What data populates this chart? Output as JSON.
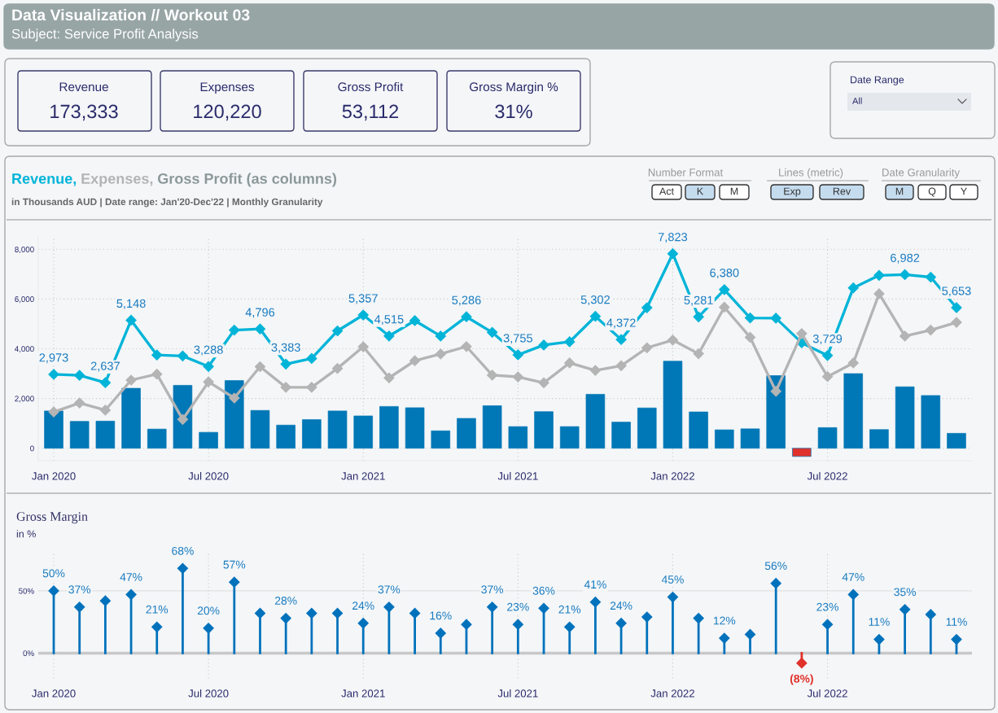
{
  "chart_data": [
    {
      "type": "other",
      "title": "Data Visualization // Workout 03",
      "subtitle": "Subject: Service Profit Analysis",
      "annotations": [
        "Revenue",
        "173,333",
        "Expenses",
        "120,220",
        "Gross Profit",
        "53,112",
        "Gross Margin %",
        "31%",
        "Date Range",
        "All",
        "Number Format",
        "Act",
        "K",
        "M",
        "Lines (metric)",
        "Exp",
        "Rev",
        "Date Granularity",
        "M",
        "Q",
        "Y"
      ]
    },
    {
      "type": "bar",
      "title": "Gross Profit (as columns)",
      "subtitle": "in Thousands AUD | Date range: Jan'20-Dec'22 | Monthly Granularity",
      "categories": [
        "Jan 2020",
        null,
        null,
        null,
        null,
        null,
        "Jul 2020",
        null,
        null,
        null,
        null,
        null,
        "Jan 2021",
        null,
        null,
        null,
        null,
        null,
        "Jul 2021",
        null,
        null,
        null,
        null,
        null,
        "Jan 2022",
        null,
        null,
        null,
        null,
        null,
        "Jul 2022",
        null,
        null,
        null,
        null,
        null
      ],
      "ylim": [
        -500,
        8500
      ],
      "yticks": [
        {
          "value": 0,
          "label": "0"
        },
        {
          "value": 2000,
          "label": "2,000"
        },
        {
          "value": 4000,
          "label": "4,000"
        },
        {
          "value": 6000,
          "label": "6,000"
        },
        {
          "value": 8000,
          "label": "8,000"
        }
      ],
      "grid": true,
      "legend": "top left",
      "series": [
        {
          "type": "bar",
          "color": "#0077b6",
          "values": [
            1500,
            1080,
            1090,
            2410,
            770,
            2530,
            640,
            2720,
            1520,
            930,
            1150,
            1500,
            1300,
            1680,
            1630,
            700,
            1200,
            1710,
            870,
            1470,
            870,
            2170,
            1050,
            1620,
            3500,
            1460,
            740,
            780,
            2920,
            -330,
            830,
            3000,
            750,
            2470,
            2120,
            600
          ],
          "colors": [
            "#0077b6",
            "#0077b6",
            "#0077b6",
            "#0077b6",
            "#0077b6",
            "#0077b6",
            "#0077b6",
            "#0077b6",
            "#0077b6",
            "#0077b6",
            "#0077b6",
            "#0077b6",
            "#0077b6",
            "#0077b6",
            "#0077b6",
            "#0077b6",
            "#0077b6",
            "#0077b6",
            "#0077b6",
            "#0077b6",
            "#0077b6",
            "#0077b6",
            "#0077b6",
            "#0077b6",
            "#0077b6",
            "#0077b6",
            "#0077b6",
            "#0077b6",
            "#0077b6",
            "#e0312b",
            "#0077b6",
            "#0077b6",
            "#0077b6",
            "#0077b6",
            "#0077b6",
            "#0077b6"
          ]
        },
        {
          "type": "line",
          "name": "Revenue,",
          "color": "#00b4d8",
          "marker": "diamond",
          "values": [
            2973,
            2930,
            2637,
            5148,
            3750,
            3710,
            3288,
            4750,
            4796,
            3383,
            3610,
            4720,
            5357,
            4515,
            5130,
            4510,
            5286,
            4660,
            3755,
            4150,
            4280,
            5302,
            4372,
            5650,
            7823,
            5281,
            6380,
            5240,
            5230,
            4240,
            3729,
            6450,
            6950,
            6982,
            6880,
            5653
          ],
          "value_labels": [
            "2,973",
            null,
            "2,637",
            "5,148",
            null,
            null,
            "3,288",
            null,
            "4,796",
            "3,383",
            null,
            null,
            "5,357",
            "4,515",
            null,
            null,
            "5,286",
            null,
            "3,755",
            null,
            null,
            "5,302",
            "4,372",
            null,
            "7,823",
            "5,281",
            "6,380",
            null,
            null,
            null,
            "3,729",
            null,
            null,
            "6,982",
            null,
            "5,653"
          ]
        },
        {
          "type": "line",
          "name": "Expenses,",
          "color": "#b4b4b4",
          "marker": "diamond",
          "values": [
            1460,
            1820,
            1530,
            2740,
            2980,
            1160,
            2670,
            2020,
            3280,
            2450,
            2450,
            3210,
            4080,
            2830,
            3520,
            3790,
            4090,
            2940,
            2870,
            2630,
            3430,
            3130,
            3320,
            4040,
            4350,
            3800,
            5670,
            4460,
            2290,
            4610,
            2880,
            3430,
            6210,
            4510,
            4750,
            5060
          ]
        }
      ]
    },
    {
      "type": "lollipop",
      "title": "Gross Margin",
      "subtitle": "in %",
      "categories": [
        "Jan 2020",
        null,
        null,
        null,
        null,
        null,
        "Jul 2020",
        null,
        null,
        null,
        null,
        null,
        "Jan 2021",
        null,
        null,
        null,
        null,
        null,
        "Jul 2021",
        null,
        null,
        null,
        null,
        null,
        "Jan 2022",
        null,
        null,
        null,
        null,
        null,
        "Jul 2022",
        null,
        null,
        null,
        null,
        null
      ],
      "ylim": [
        -20,
        80
      ],
      "yticks": [
        {
          "value": 0,
          "label": "0%"
        },
        {
          "value": 50,
          "label": "50%"
        }
      ],
      "grid": "x",
      "marker": "diamond",
      "ref_lines": [
        {
          "axis": "y",
          "value": 50,
          "color": "#e2e2e2",
          "line_style": "solid"
        }
      ],
      "values": [
        50,
        37,
        42,
        47,
        21,
        68,
        20,
        57,
        32,
        28,
        32,
        32,
        24,
        37,
        32,
        16,
        23,
        37,
        23,
        36,
        21,
        41,
        24,
        29,
        45,
        28,
        12,
        15,
        56,
        -8,
        23,
        47,
        11,
        35,
        31,
        11
      ],
      "colors": [
        "#0072bc",
        "#0072bc",
        "#0072bc",
        "#0072bc",
        "#0072bc",
        "#0072bc",
        "#0072bc",
        "#0072bc",
        "#0072bc",
        "#0072bc",
        "#0072bc",
        "#0072bc",
        "#0072bc",
        "#0072bc",
        "#0072bc",
        "#0072bc",
        "#0072bc",
        "#0072bc",
        "#0072bc",
        "#0072bc",
        "#0072bc",
        "#0072bc",
        "#0072bc",
        "#0072bc",
        "#0072bc",
        "#0072bc",
        "#0072bc",
        "#0072bc",
        "#0072bc",
        "#e0312b",
        "#0072bc",
        "#0072bc",
        "#0072bc",
        "#0072bc",
        "#0072bc",
        "#0072bc"
      ],
      "value_labels": [
        "50%",
        "37%",
        null,
        "47%",
        "21%",
        "68%",
        "20%",
        "57%",
        null,
        "28%",
        null,
        null,
        "24%",
        "37%",
        null,
        "16%",
        null,
        "37%",
        "23%",
        "36%",
        "21%",
        "41%",
        "24%",
        null,
        "45%",
        null,
        "12%",
        null,
        "56%",
        "(8%)",
        "23%",
        "47%",
        "11%",
        "35%",
        null,
        "11%"
      ]
    }
  ]
}
